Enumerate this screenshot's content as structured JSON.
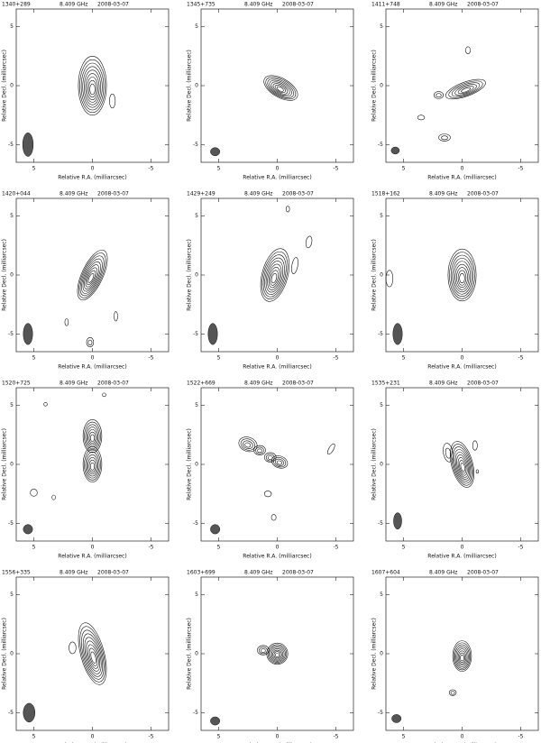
{
  "x_label": "Relative R.A. (milliarcsec)",
  "y_label": "Relative Decl. (milliarcsec)",
  "xlim": [
    6.5,
    -6.5
  ],
  "ylim": [
    -6.5,
    6.5
  ],
  "xticks": [
    5,
    0,
    -5
  ],
  "yticks": [
    -5,
    0,
    5
  ],
  "panels": [
    {
      "source": "1340+289",
      "frequency": "8.409 GHz",
      "date": "2008-03-07"
    },
    {
      "source": "1345+735",
      "frequency": "8.409 GHz",
      "date": "2008-03-07"
    },
    {
      "source": "1411+748",
      "frequency": "8.409 GHz",
      "date": "2008-03-07"
    },
    {
      "source": "1420+044",
      "frequency": "8.409 GHz",
      "date": "2008-03-07"
    },
    {
      "source": "1429+249",
      "frequency": "8.409 GHz",
      "date": "2008-03-07"
    },
    {
      "source": "1518+162",
      "frequency": "8.409 GHz",
      "date": "2008-03-07"
    },
    {
      "source": "1520+725",
      "frequency": "8.409 GHz",
      "date": "2008-03-07"
    },
    {
      "source": "1522+669",
      "frequency": "8.409 GHz",
      "date": "2008-03-07"
    },
    {
      "source": "1535+231",
      "frequency": "8.409 GHz",
      "date": "2008-03-07"
    },
    {
      "source": "1556+335",
      "frequency": "8.409 GHz",
      "date": "2008-03-07"
    },
    {
      "source": "1603+699",
      "frequency": "8.409 GHz",
      "date": "2008-03-07"
    },
    {
      "source": "1607+604",
      "frequency": "8.409 GHz",
      "date": "2008-03-07"
    }
  ]
}
